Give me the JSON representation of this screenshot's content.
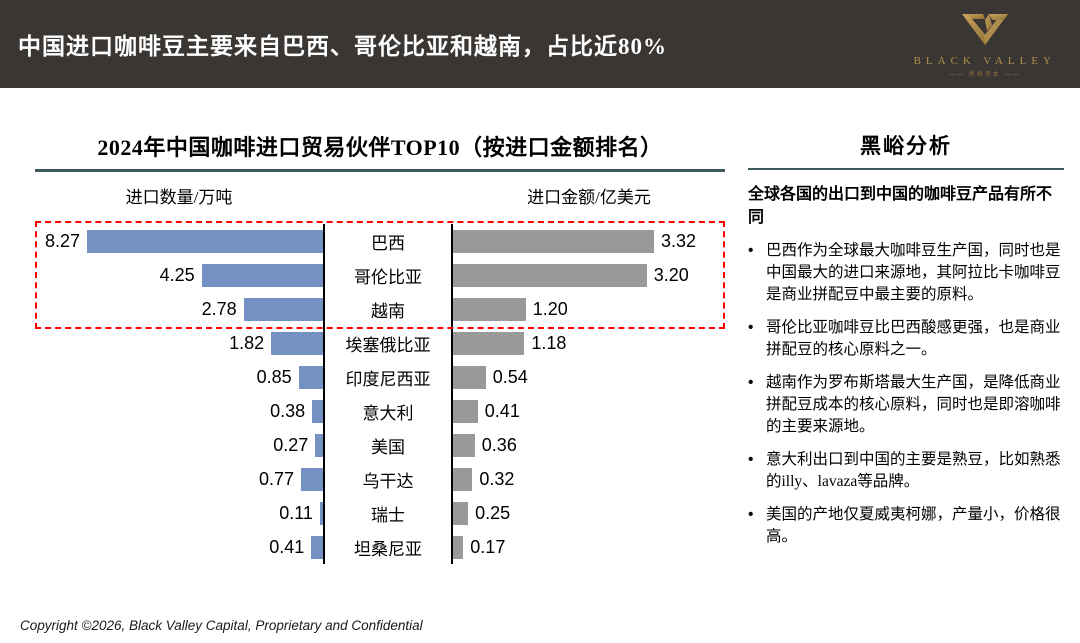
{
  "header": {
    "title": "中国进口咖啡豆主要来自巴西、哥伦比亚和越南，占比近80%",
    "logo": {
      "name": "BLACK VALLEY",
      "subtext": "—— 黑峪资本 ——"
    }
  },
  "chart": {
    "title": "2024年中国咖啡进口贸易伙伴TOP10（按进口金额排名）",
    "left_header": "进口数量/万吨",
    "right_header": "进口金额/亿美元"
  },
  "chart_data": {
    "type": "bar",
    "orientation": "horizontal-tornado",
    "title": "2024年中国咖啡进口贸易伙伴TOP10（按进口金额排名）",
    "categories": [
      "巴西",
      "哥伦比亚",
      "越南",
      "埃塞俄比亚",
      "印度尼西亚",
      "意大利",
      "美国",
      "乌干达",
      "瑞士",
      "坦桑尼亚"
    ],
    "series": [
      {
        "name": "进口数量/万吨",
        "side": "left",
        "color": "#7591c4",
        "values": [
          8.27,
          4.25,
          2.78,
          1.82,
          0.85,
          0.38,
          0.27,
          0.77,
          0.11,
          0.41
        ]
      },
      {
        "name": "进口金额/亿美元",
        "side": "right",
        "color": "#999999",
        "values": [
          3.32,
          3.2,
          1.2,
          1.18,
          0.54,
          0.41,
          0.36,
          0.32,
          0.25,
          0.17
        ]
      }
    ],
    "value_format": "2-decimals",
    "highlight": {
      "rows": [
        "巴西",
        "哥伦比亚",
        "越南"
      ],
      "style": "red-dashed-box",
      "color": "#fe0000"
    },
    "legend_position": "none",
    "grid": false
  },
  "analysis": {
    "title": "黑峪分析",
    "intro": "全球各国的出口到中国的咖啡豆产品有所不同",
    "bullets": [
      "巴西作为全球最大咖啡豆生产国，同时也是中国最大的进口来源地，其阿拉比卡咖啡豆是商业拼配豆中最主要的原料。",
      "哥伦比亚咖啡豆比巴西酸感更强，也是商业拼配豆的核心原料之一。",
      "越南作为罗布斯塔最大生产国，是降低商业拼配豆成本的核心原料，同时也是即溶咖啡的主要来源地。",
      "意大利出口到中国的主要是熟豆，比如熟悉的illy、lavaza等品牌。",
      "美国的产地仅夏威夷柯娜，产量小，价格很高。"
    ]
  },
  "footer": {
    "copyright": "Copyright ©2026, Black Valley Capital, Proprietary and Confidential"
  },
  "colors": {
    "header_bg": "#3a3633",
    "bar_blue": "#7591c4",
    "bar_gray": "#999999",
    "underline_teal": "#3d5a5c",
    "highlight_red": "#fe0000",
    "logo_gold": "#b2904f"
  }
}
